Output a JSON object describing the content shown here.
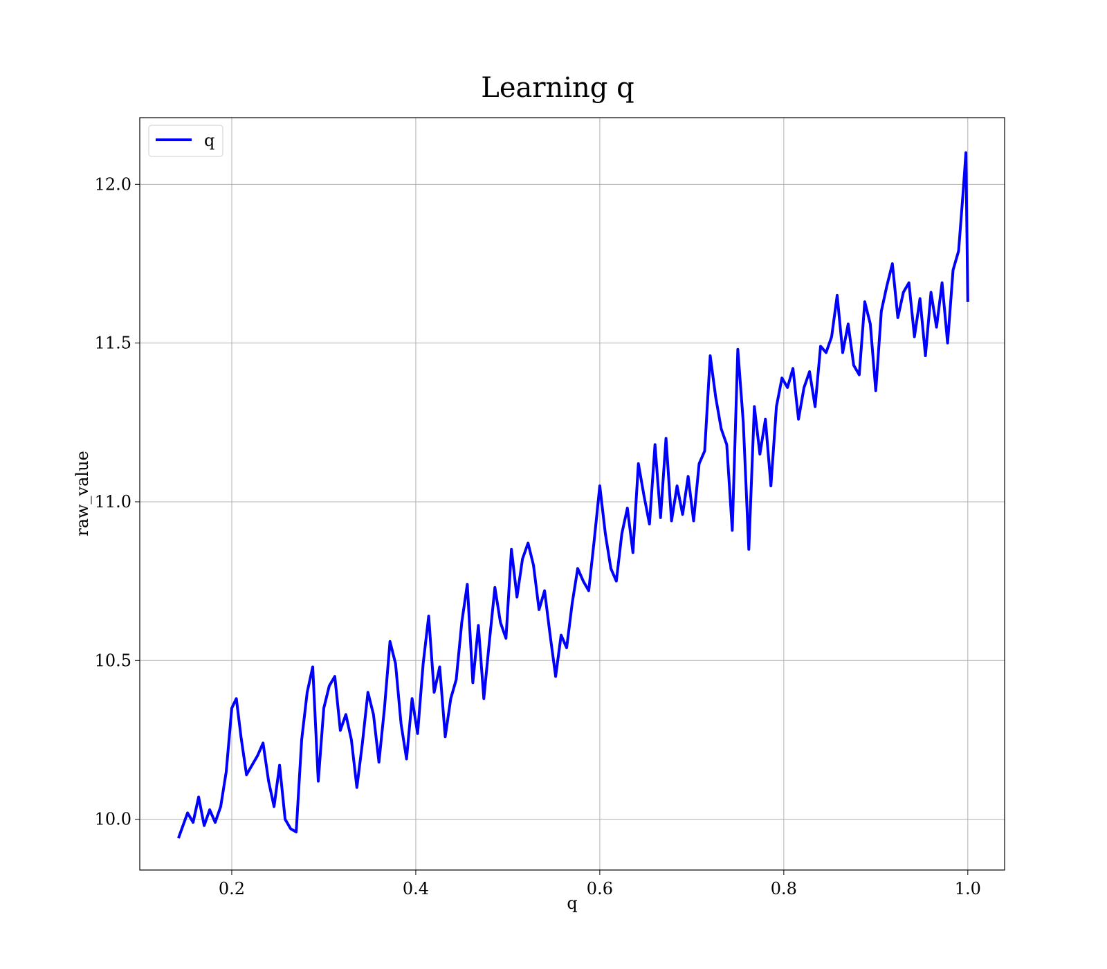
{
  "chart_data": {
    "type": "line",
    "title": "Learning q",
    "xlabel": "q",
    "ylabel": "raw_value",
    "xlim": [
      0.1,
      1.04
    ],
    "ylim": [
      9.84,
      12.21
    ],
    "xticks": [
      0.2,
      0.4,
      0.6,
      0.8,
      1.0
    ],
    "xtick_labels": [
      "0.2",
      "0.4",
      "0.6",
      "0.8",
      "1.0"
    ],
    "yticks": [
      10.0,
      10.5,
      11.0,
      11.5,
      12.0
    ],
    "ytick_labels": [
      "10.0",
      "10.5",
      "11.0",
      "11.5",
      "12.0"
    ],
    "grid": true,
    "legend_position": "top-left",
    "series": [
      {
        "name": "q",
        "color": "#0000ff",
        "x": [
          0.142,
          0.152,
          0.158,
          0.164,
          0.17,
          0.176,
          0.182,
          0.188,
          0.194,
          0.2,
          0.205,
          0.21,
          0.216,
          0.222,
          0.228,
          0.234,
          0.24,
          0.246,
          0.252,
          0.258,
          0.264,
          0.27,
          0.276,
          0.282,
          0.288,
          0.294,
          0.3,
          0.306,
          0.312,
          0.318,
          0.324,
          0.33,
          0.336,
          0.342,
          0.348,
          0.354,
          0.36,
          0.366,
          0.372,
          0.378,
          0.384,
          0.39,
          0.396,
          0.402,
          0.408,
          0.414,
          0.42,
          0.426,
          0.432,
          0.438,
          0.444,
          0.45,
          0.456,
          0.462,
          0.468,
          0.474,
          0.48,
          0.486,
          0.492,
          0.498,
          0.504,
          0.51,
          0.516,
          0.522,
          0.528,
          0.534,
          0.54,
          0.546,
          0.552,
          0.558,
          0.564,
          0.57,
          0.576,
          0.582,
          0.588,
          0.594,
          0.6,
          0.606,
          0.612,
          0.618,
          0.624,
          0.63,
          0.636,
          0.642,
          0.648,
          0.654,
          0.66,
          0.666,
          0.672,
          0.678,
          0.684,
          0.69,
          0.696,
          0.702,
          0.708,
          0.714,
          0.72,
          0.726,
          0.732,
          0.738,
          0.744,
          0.75,
          0.756,
          0.762,
          0.768,
          0.774,
          0.78,
          0.786,
          0.792,
          0.798,
          0.804,
          0.81,
          0.816,
          0.822,
          0.828,
          0.834,
          0.84,
          0.846,
          0.852,
          0.858,
          0.864,
          0.87,
          0.876,
          0.882,
          0.888,
          0.894,
          0.9,
          0.906,
          0.912,
          0.918,
          0.924,
          0.93,
          0.936,
          0.942,
          0.948,
          0.954,
          0.96,
          0.966,
          0.972,
          0.978,
          0.984,
          0.99,
          0.995,
          0.998,
          1.0
        ],
        "y": [
          9.94,
          10.02,
          9.99,
          10.07,
          9.98,
          10.03,
          9.99,
          10.04,
          10.15,
          10.35,
          10.38,
          10.26,
          10.14,
          10.17,
          10.2,
          10.24,
          10.12,
          10.04,
          10.17,
          10.0,
          9.97,
          9.96,
          10.25,
          10.4,
          10.48,
          10.12,
          10.35,
          10.42,
          10.45,
          10.28,
          10.33,
          10.25,
          10.1,
          10.24,
          10.4,
          10.33,
          10.18,
          10.35,
          10.56,
          10.49,
          10.3,
          10.19,
          10.38,
          10.27,
          10.49,
          10.64,
          10.4,
          10.48,
          10.26,
          10.38,
          10.44,
          10.62,
          10.74,
          10.43,
          10.61,
          10.38,
          10.56,
          10.73,
          10.62,
          10.57,
          10.85,
          10.7,
          10.82,
          10.87,
          10.8,
          10.66,
          10.72,
          10.58,
          10.45,
          10.58,
          10.54,
          10.68,
          10.79,
          10.75,
          10.72,
          10.88,
          11.05,
          10.9,
          10.79,
          10.75,
          10.9,
          10.98,
          10.84,
          11.12,
          11.02,
          10.93,
          11.18,
          10.95,
          11.2,
          10.94,
          11.05,
          10.96,
          11.08,
          10.94,
          11.12,
          11.16,
          11.46,
          11.33,
          11.23,
          11.18,
          10.91,
          11.48,
          11.25,
          10.85,
          11.3,
          11.15,
          11.26,
          11.05,
          11.3,
          11.39,
          11.36,
          11.42,
          11.26,
          11.36,
          11.41,
          11.3,
          11.49,
          11.47,
          11.52,
          11.65,
          11.47,
          11.56,
          11.43,
          11.4,
          11.63,
          11.56,
          11.35,
          11.6,
          11.68,
          11.75,
          11.58,
          11.66,
          11.69,
          11.52,
          11.64,
          11.46,
          11.66,
          11.55,
          11.69,
          11.5,
          11.73,
          11.79,
          11.98,
          12.1,
          11.63
        ]
      }
    ]
  }
}
